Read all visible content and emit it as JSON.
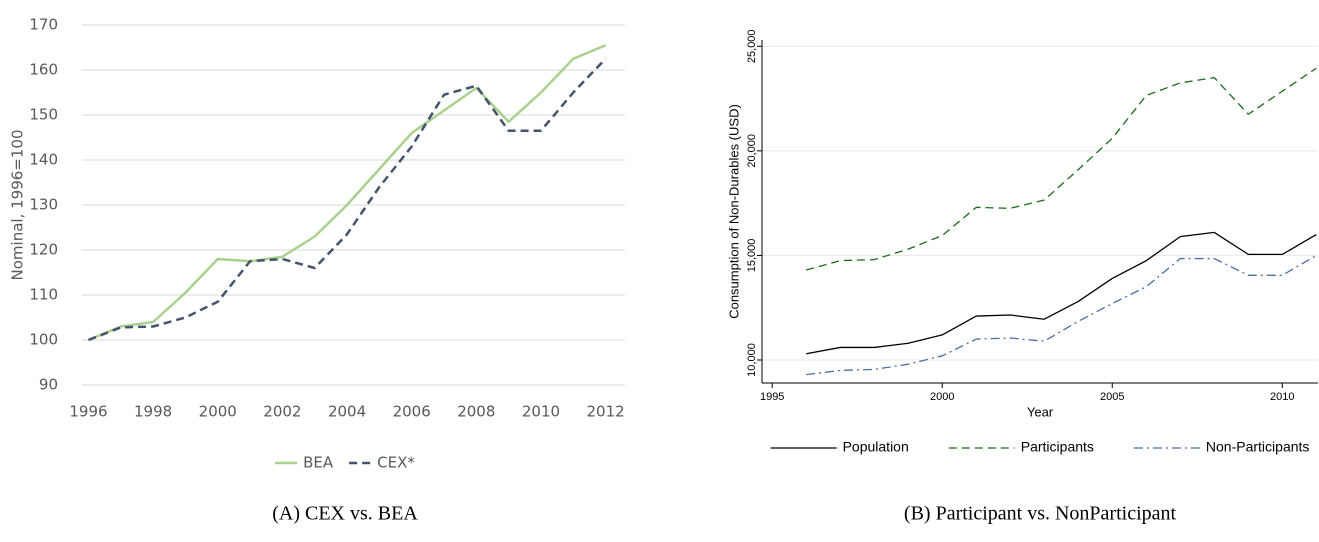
{
  "chart_data": [
    {
      "type": "line",
      "caption": "(A) CEX vs. BEA",
      "y_label": "Nominal, 1996=100",
      "x": [
        1996,
        1997,
        1998,
        1999,
        2000,
        2001,
        2002,
        2003,
        2004,
        2005,
        2006,
        2007,
        2008,
        2009,
        2010,
        2011,
        2012
      ],
      "series": [
        {
          "name": "BEA",
          "color": "#a9d18e",
          "dash": "solid",
          "values": [
            100,
            103,
            104,
            110.5,
            118,
            117.5,
            118.5,
            123,
            130,
            138,
            146,
            151,
            156,
            148.5,
            155,
            162.5,
            165.5
          ]
        },
        {
          "name": "CEX*",
          "color": "#44546a",
          "dash": "dashed",
          "values": [
            100,
            102.8,
            103,
            105,
            108.5,
            117.5,
            118,
            116,
            123.5,
            134,
            143,
            154.5,
            156.5,
            146.5,
            146.5,
            155,
            162.5
          ]
        }
      ],
      "xlim": [
        1995.8,
        2012.6
      ],
      "xticks": [
        1996,
        1998,
        2000,
        2002,
        2004,
        2006,
        2008,
        2010,
        2012
      ],
      "ylim": [
        90,
        170
      ],
      "yticks": [
        90,
        100,
        110,
        120,
        130,
        140,
        150,
        160,
        170
      ],
      "grid": true,
      "legend": "bottom"
    },
    {
      "type": "line",
      "caption": "(B) Participant vs. NonParticipant",
      "y_label": "Consumption of Non-Durables (USD)",
      "x_label": "Year",
      "x": [
        1996,
        1997,
        1998,
        1999,
        2000,
        2001,
        2002,
        2003,
        2004,
        2005,
        2006,
        2007,
        2008,
        2009,
        2010,
        2011
      ],
      "series": [
        {
          "name": "Population",
          "color": "#000000",
          "dash": "solid",
          "values": [
            10300,
            10600,
            10600,
            10800,
            11200,
            12100,
            12150,
            11950,
            12800,
            13900,
            14750,
            15900,
            16100,
            15050,
            15050,
            16000
          ]
        },
        {
          "name": "Participants",
          "color": "#1a6b1a",
          "dash": "dashed",
          "values": [
            14300,
            14750,
            14800,
            15300,
            15950,
            17300,
            17250,
            17650,
            19100,
            20600,
            22650,
            23250,
            23500,
            21750,
            22850,
            23950
          ]
        },
        {
          "name": "Non-Participants",
          "color": "#4a6fa5",
          "dash": "dashdot",
          "values": [
            9300,
            9500,
            9550,
            9800,
            10200,
            11000,
            11050,
            10900,
            11850,
            12700,
            13500,
            14850,
            14850,
            14050,
            14050,
            15000
          ]
        }
      ],
      "xlim": [
        1994.7,
        2011.05
      ],
      "xticks": [
        1995,
        2000,
        2005,
        2010
      ],
      "ylim": [
        8900,
        25300
      ],
      "yticks": [
        {
          "value": 10000,
          "label": "10,000"
        },
        {
          "value": 15000,
          "label": "15,000"
        },
        {
          "value": 20000,
          "label": "20,000"
        },
        {
          "value": 25000,
          "label": "25,000"
        }
      ],
      "grid": true,
      "legend": "bottom"
    }
  ]
}
